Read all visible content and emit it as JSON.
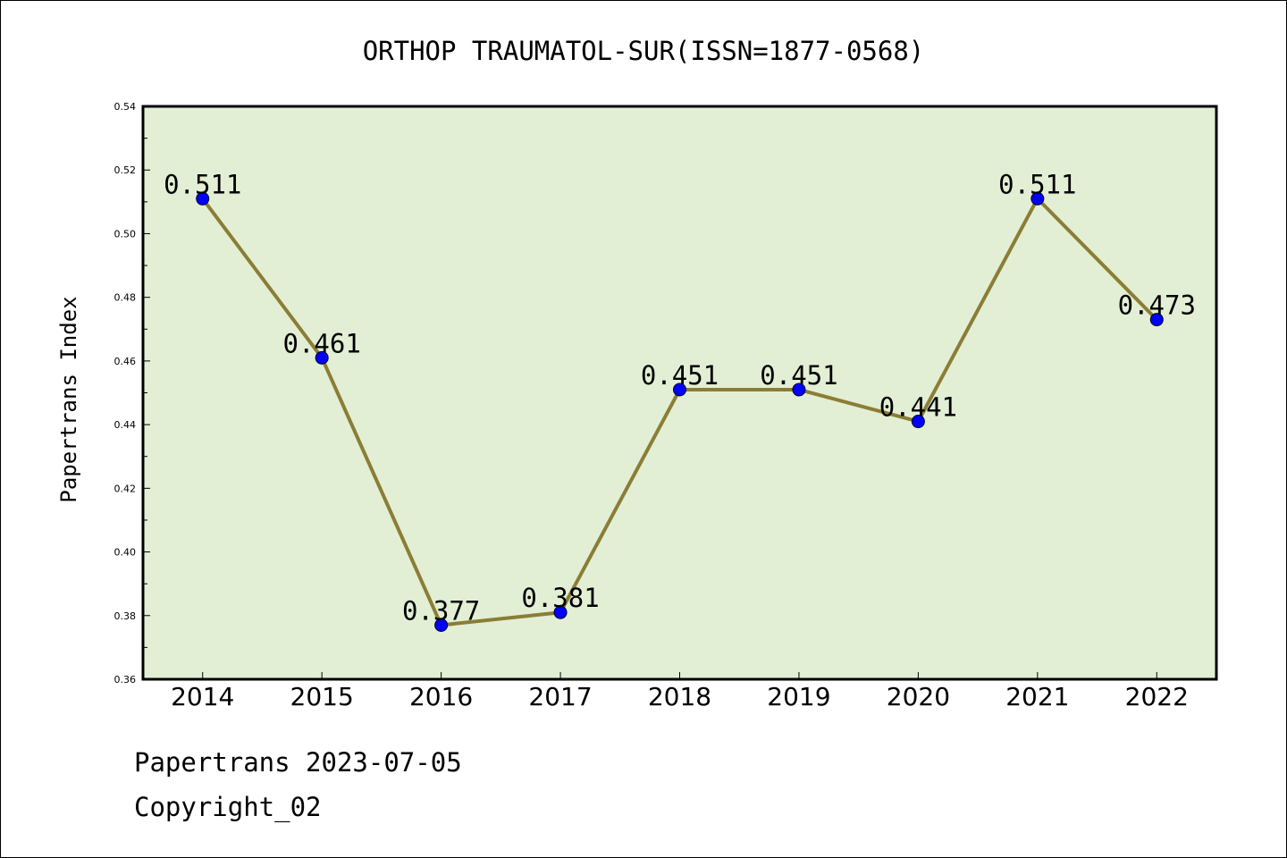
{
  "chart_data": {
    "type": "line",
    "title": "ORTHOP TRAUMATOL-SUR(ISSN=1877-0568)",
    "ylabel": "Papertrans Index",
    "xlabel": "",
    "categories": [
      "2014",
      "2015",
      "2016",
      "2017",
      "2018",
      "2019",
      "2020",
      "2021",
      "2022"
    ],
    "values": [
      0.511,
      0.461,
      0.377,
      0.381,
      0.451,
      0.451,
      0.441,
      0.511,
      0.473
    ],
    "data_labels": [
      "0.511",
      "0.461",
      "0.377",
      "0.381",
      "0.451",
      "0.451",
      "0.441",
      "0.511",
      "0.473"
    ],
    "ylim": [
      0.36,
      0.54
    ],
    "y_ticks": [
      "0.36",
      "0.38",
      "0.40",
      "0.42",
      "0.44",
      "0.46",
      "0.48",
      "0.50",
      "0.52",
      "0.54"
    ],
    "grid": false,
    "legend": "none",
    "colors": {
      "plot_background": "#e2efd5",
      "line": "#8b7d35",
      "marker": "#0000ff"
    }
  },
  "footer": {
    "source": "Papertrans 2023-07-05",
    "copyright": "Copyright_02"
  }
}
